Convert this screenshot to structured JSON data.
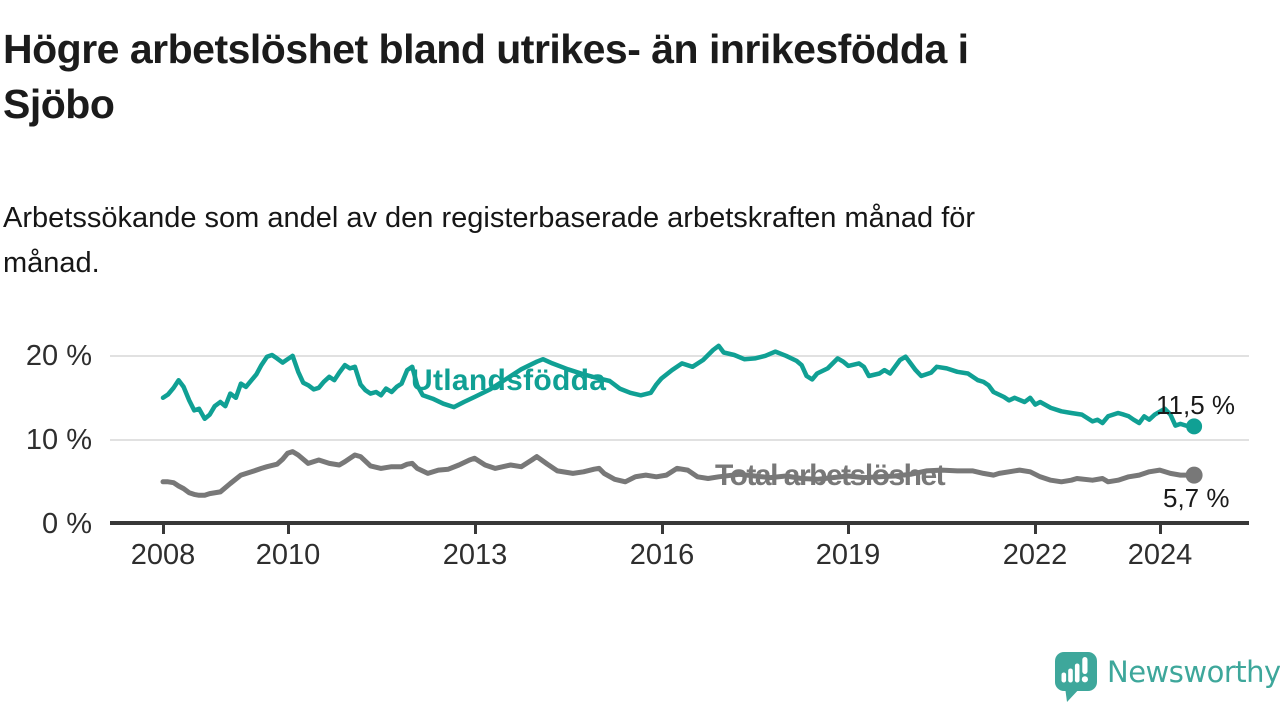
{
  "header": {
    "title_lines": [
      "Högre arbetslöshet bland utrikes- än inrikesfödda i",
      "Sjöbo"
    ],
    "subtitle_lines": [
      "Arbetssökande som andel av den registerbaserade arbetskraften månad för",
      "månad."
    ]
  },
  "chart_data": {
    "type": "line",
    "title": "Högre arbetslöshet bland utrikes- än inrikesfödda i Sjöbo",
    "subtitle": "Arbetssökande som andel av den registerbaserade arbetskraften månad för månad.",
    "xlabel": "",
    "ylabel": "",
    "x_unit": "decimal_year",
    "xlim": [
      2008,
      2024.6
    ],
    "ylim": [
      0,
      21.5
    ],
    "grid": "horizontal",
    "legend_position": "inline-labels",
    "y_ticks": [
      {
        "value": 20,
        "label": "20 %"
      },
      {
        "value": 10,
        "label": "10 %"
      },
      {
        "value": 0,
        "label": "0 %"
      }
    ],
    "x_ticks": [
      {
        "value": 2008,
        "label": "2008"
      },
      {
        "value": 2010,
        "label": "2010"
      },
      {
        "value": 2013,
        "label": "2013"
      },
      {
        "value": 2016,
        "label": "2016"
      },
      {
        "value": 2019,
        "label": "2019"
      },
      {
        "value": 2022,
        "label": "2022"
      },
      {
        "value": 2024,
        "label": "2024"
      }
    ],
    "series": [
      {
        "name": "Utlandsfödda",
        "color": "#10a094",
        "end_value": 11.5,
        "end_label": "11,5 %",
        "points": [
          [
            2008.0,
            14.9
          ],
          [
            2008.08,
            15.3
          ],
          [
            2008.17,
            16.1
          ],
          [
            2008.25,
            17.0
          ],
          [
            2008.33,
            16.2
          ],
          [
            2008.42,
            14.6
          ],
          [
            2008.5,
            13.4
          ],
          [
            2008.58,
            13.6
          ],
          [
            2008.67,
            12.4
          ],
          [
            2008.75,
            12.9
          ],
          [
            2008.83,
            13.9
          ],
          [
            2008.92,
            14.4
          ],
          [
            2009.0,
            13.9
          ],
          [
            2009.08,
            15.4
          ],
          [
            2009.17,
            14.9
          ],
          [
            2009.25,
            16.6
          ],
          [
            2009.33,
            16.2
          ],
          [
            2009.42,
            17.0
          ],
          [
            2009.5,
            17.7
          ],
          [
            2009.58,
            18.8
          ],
          [
            2009.67,
            19.8
          ],
          [
            2009.75,
            20.0
          ],
          [
            2009.83,
            19.6
          ],
          [
            2009.92,
            19.1
          ],
          [
            2010.0,
            19.5
          ],
          [
            2010.08,
            19.9
          ],
          [
            2010.17,
            18.0
          ],
          [
            2010.25,
            16.7
          ],
          [
            2010.33,
            16.4
          ],
          [
            2010.42,
            15.9
          ],
          [
            2010.5,
            16.1
          ],
          [
            2010.58,
            16.8
          ],
          [
            2010.67,
            17.4
          ],
          [
            2010.75,
            17.0
          ],
          [
            2010.83,
            17.9
          ],
          [
            2010.92,
            18.8
          ],
          [
            2011.0,
            18.4
          ],
          [
            2011.08,
            18.6
          ],
          [
            2011.17,
            16.5
          ],
          [
            2011.25,
            15.8
          ],
          [
            2011.33,
            15.4
          ],
          [
            2011.42,
            15.6
          ],
          [
            2011.5,
            15.2
          ],
          [
            2011.58,
            16.0
          ],
          [
            2011.67,
            15.6
          ],
          [
            2011.75,
            16.2
          ],
          [
            2011.83,
            16.6
          ],
          [
            2011.92,
            18.2
          ],
          [
            2012.0,
            18.6
          ],
          [
            2012.08,
            16.4
          ],
          [
            2012.17,
            15.2
          ],
          [
            2012.33,
            14.8
          ],
          [
            2012.5,
            14.2
          ],
          [
            2012.67,
            13.8
          ],
          [
            2012.83,
            14.4
          ],
          [
            2013.0,
            15.0
          ],
          [
            2013.25,
            15.9
          ],
          [
            2013.5,
            17.1
          ],
          [
            2013.75,
            18.3
          ],
          [
            2014.0,
            19.2
          ],
          [
            2014.1,
            19.5
          ],
          [
            2014.25,
            19.0
          ],
          [
            2014.5,
            18.3
          ],
          [
            2014.75,
            17.7
          ],
          [
            2015.0,
            17.2
          ],
          [
            2015.17,
            16.9
          ],
          [
            2015.33,
            16.0
          ],
          [
            2015.5,
            15.5
          ],
          [
            2015.67,
            15.2
          ],
          [
            2015.83,
            15.5
          ],
          [
            2015.92,
            16.5
          ],
          [
            2016.0,
            17.2
          ],
          [
            2016.17,
            18.2
          ],
          [
            2016.33,
            19.0
          ],
          [
            2016.5,
            18.6
          ],
          [
            2016.67,
            19.4
          ],
          [
            2016.83,
            20.6
          ],
          [
            2016.92,
            21.1
          ],
          [
            2017.0,
            20.3
          ],
          [
            2017.17,
            20.0
          ],
          [
            2017.33,
            19.5
          ],
          [
            2017.5,
            19.6
          ],
          [
            2017.67,
            19.9
          ],
          [
            2017.83,
            20.4
          ],
          [
            2018.0,
            19.9
          ],
          [
            2018.17,
            19.3
          ],
          [
            2018.25,
            18.8
          ],
          [
            2018.33,
            17.5
          ],
          [
            2018.42,
            17.1
          ],
          [
            2018.5,
            17.8
          ],
          [
            2018.67,
            18.4
          ],
          [
            2018.83,
            19.6
          ],
          [
            2018.92,
            19.2
          ],
          [
            2019.0,
            18.7
          ],
          [
            2019.17,
            19.0
          ],
          [
            2019.25,
            18.6
          ],
          [
            2019.33,
            17.5
          ],
          [
            2019.5,
            17.8
          ],
          [
            2019.58,
            18.2
          ],
          [
            2019.67,
            17.8
          ],
          [
            2019.83,
            19.4
          ],
          [
            2019.92,
            19.8
          ],
          [
            2020.0,
            19.0
          ],
          [
            2020.08,
            18.2
          ],
          [
            2020.17,
            17.5
          ],
          [
            2020.33,
            17.9
          ],
          [
            2020.42,
            18.6
          ],
          [
            2020.58,
            18.4
          ],
          [
            2020.75,
            18.0
          ],
          [
            2020.92,
            17.8
          ],
          [
            2021.08,
            17.0
          ],
          [
            2021.17,
            16.8
          ],
          [
            2021.25,
            16.4
          ],
          [
            2021.33,
            15.6
          ],
          [
            2021.5,
            15.0
          ],
          [
            2021.58,
            14.6
          ],
          [
            2021.67,
            14.9
          ],
          [
            2021.83,
            14.4
          ],
          [
            2021.92,
            14.9
          ],
          [
            2022.0,
            14.1
          ],
          [
            2022.08,
            14.4
          ],
          [
            2022.25,
            13.7
          ],
          [
            2022.42,
            13.3
          ],
          [
            2022.58,
            13.1
          ],
          [
            2022.75,
            12.9
          ],
          [
            2022.92,
            12.1
          ],
          [
            2023.0,
            12.3
          ],
          [
            2023.08,
            11.9
          ],
          [
            2023.17,
            12.7
          ],
          [
            2023.33,
            13.1
          ],
          [
            2023.42,
            12.9
          ],
          [
            2023.5,
            12.7
          ],
          [
            2023.58,
            12.3
          ],
          [
            2023.67,
            11.9
          ],
          [
            2023.75,
            12.7
          ],
          [
            2023.83,
            12.3
          ],
          [
            2023.92,
            12.9
          ],
          [
            2024.08,
            13.6
          ],
          [
            2024.17,
            12.9
          ],
          [
            2024.25,
            11.6
          ],
          [
            2024.33,
            11.8
          ],
          [
            2024.42,
            11.6
          ],
          [
            2024.55,
            11.5
          ]
        ]
      },
      {
        "name": "Total arbetslöshet",
        "color": "#787878",
        "end_value": 5.7,
        "end_label": "5,7 %",
        "points": [
          [
            2008.0,
            4.9
          ],
          [
            2008.08,
            4.9
          ],
          [
            2008.17,
            4.8
          ],
          [
            2008.25,
            4.4
          ],
          [
            2008.33,
            4.1
          ],
          [
            2008.42,
            3.6
          ],
          [
            2008.5,
            3.4
          ],
          [
            2008.58,
            3.3
          ],
          [
            2008.67,
            3.3
          ],
          [
            2008.75,
            3.5
          ],
          [
            2008.92,
            3.7
          ],
          [
            2009.08,
            4.7
          ],
          [
            2009.25,
            5.7
          ],
          [
            2009.42,
            6.1
          ],
          [
            2009.58,
            6.5
          ],
          [
            2009.67,
            6.7
          ],
          [
            2009.83,
            7.0
          ],
          [
            2009.92,
            7.6
          ],
          [
            2010.0,
            8.3
          ],
          [
            2010.08,
            8.5
          ],
          [
            2010.17,
            8.1
          ],
          [
            2010.33,
            7.1
          ],
          [
            2010.5,
            7.5
          ],
          [
            2010.67,
            7.1
          ],
          [
            2010.83,
            6.9
          ],
          [
            2010.92,
            7.3
          ],
          [
            2011.0,
            7.7
          ],
          [
            2011.08,
            8.1
          ],
          [
            2011.17,
            7.9
          ],
          [
            2011.33,
            6.8
          ],
          [
            2011.5,
            6.5
          ],
          [
            2011.67,
            6.7
          ],
          [
            2011.83,
            6.7
          ],
          [
            2011.92,
            7.0
          ],
          [
            2012.0,
            7.1
          ],
          [
            2012.08,
            6.5
          ],
          [
            2012.25,
            5.9
          ],
          [
            2012.42,
            6.3
          ],
          [
            2012.58,
            6.4
          ],
          [
            2012.75,
            6.9
          ],
          [
            2012.92,
            7.5
          ],
          [
            2013.0,
            7.7
          ],
          [
            2013.17,
            6.9
          ],
          [
            2013.33,
            6.5
          ],
          [
            2013.58,
            6.9
          ],
          [
            2013.75,
            6.7
          ],
          [
            2013.92,
            7.5
          ],
          [
            2014.0,
            7.9
          ],
          [
            2014.17,
            7.0
          ],
          [
            2014.33,
            6.2
          ],
          [
            2014.58,
            5.9
          ],
          [
            2014.75,
            6.1
          ],
          [
            2014.92,
            6.4
          ],
          [
            2015.0,
            6.5
          ],
          [
            2015.08,
            5.9
          ],
          [
            2015.25,
            5.2
          ],
          [
            2015.42,
            4.9
          ],
          [
            2015.58,
            5.5
          ],
          [
            2015.75,
            5.7
          ],
          [
            2015.92,
            5.5
          ],
          [
            2016.08,
            5.7
          ],
          [
            2016.25,
            6.5
          ],
          [
            2016.42,
            6.3
          ],
          [
            2016.58,
            5.5
          ],
          [
            2016.75,
            5.3
          ],
          [
            2016.92,
            5.5
          ],
          [
            2017.25,
            5.8
          ],
          [
            2017.5,
            5.6
          ],
          [
            2017.75,
            5.4
          ],
          [
            2018.0,
            5.6
          ],
          [
            2018.25,
            5.3
          ],
          [
            2018.5,
            5.2
          ],
          [
            2018.75,
            5.4
          ],
          [
            2019.0,
            5.6
          ],
          [
            2019.25,
            5.4
          ],
          [
            2019.5,
            5.5
          ],
          [
            2019.75,
            5.6
          ],
          [
            2020.0,
            5.8
          ],
          [
            2020.25,
            6.2
          ],
          [
            2020.5,
            6.3
          ],
          [
            2020.75,
            6.2
          ],
          [
            2021.0,
            6.2
          ],
          [
            2021.17,
            5.9
          ],
          [
            2021.33,
            5.7
          ],
          [
            2021.42,
            5.9
          ],
          [
            2021.58,
            6.1
          ],
          [
            2021.75,
            6.3
          ],
          [
            2021.92,
            6.1
          ],
          [
            2022.08,
            5.5
          ],
          [
            2022.25,
            5.1
          ],
          [
            2022.42,
            4.9
          ],
          [
            2022.58,
            5.1
          ],
          [
            2022.67,
            5.3
          ],
          [
            2022.92,
            5.1
          ],
          [
            2023.08,
            5.3
          ],
          [
            2023.17,
            4.9
          ],
          [
            2023.33,
            5.1
          ],
          [
            2023.5,
            5.5
          ],
          [
            2023.67,
            5.7
          ],
          [
            2023.83,
            6.1
          ],
          [
            2024.0,
            6.3
          ],
          [
            2024.17,
            5.9
          ],
          [
            2024.33,
            5.7
          ],
          [
            2024.55,
            5.7
          ]
        ]
      }
    ]
  },
  "footer": {
    "brand": "Newsworthy",
    "brand_color": "#3ea79b",
    "logo_icon": "bar-chart-speech-bubble-icon"
  }
}
